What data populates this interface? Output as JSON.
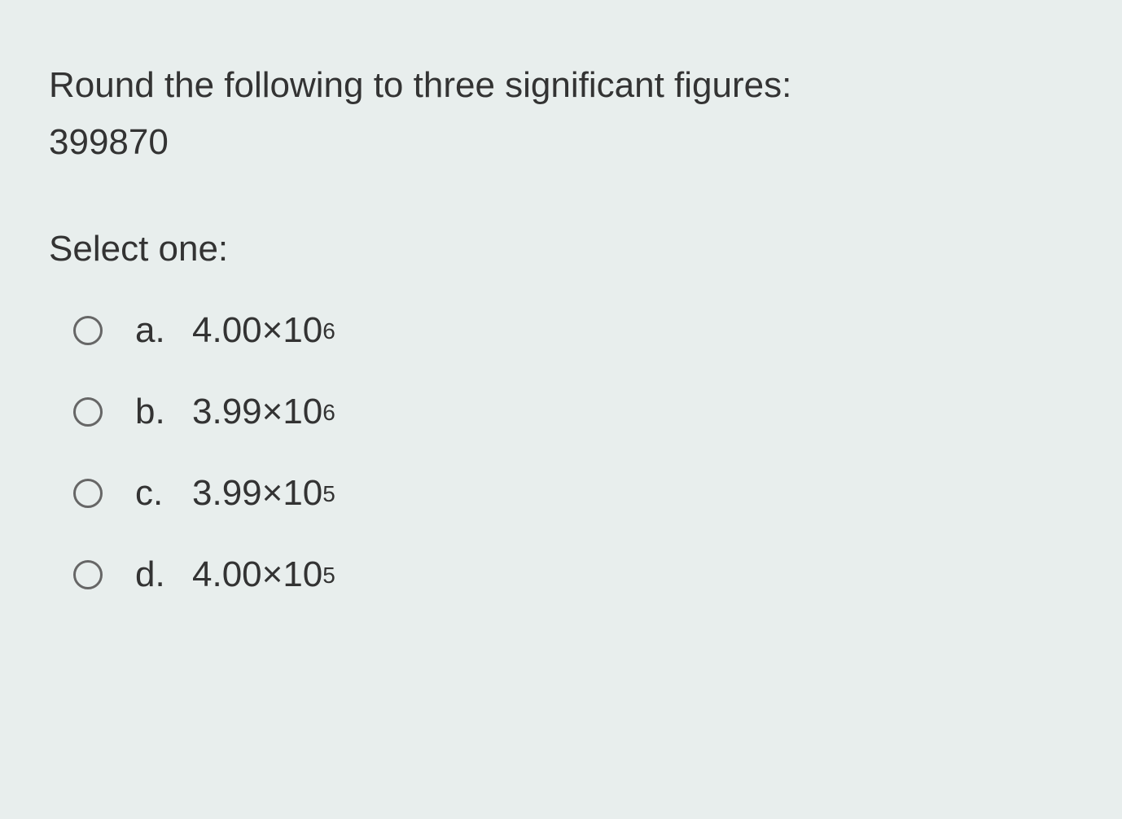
{
  "question": {
    "prompt_line1": "Round the following to three significant figures:",
    "prompt_line2": "399870",
    "select_label": "Select one:"
  },
  "options": [
    {
      "letter": "a.",
      "mantissa": "4.00×10",
      "exponent": "6"
    },
    {
      "letter": "b.",
      "mantissa": "3.99×10",
      "exponent": "6"
    },
    {
      "letter": "c.",
      "mantissa": "3.99×10",
      "exponent": "5"
    },
    {
      "letter": "d.",
      "mantissa": "4.00×10",
      "exponent": "5"
    }
  ],
  "style": {
    "background_color": "#e8eeed",
    "text_color": "#333333",
    "radio_border_color": "#666666",
    "font_size_pt": 33,
    "sup_font_size_pt": 21
  }
}
